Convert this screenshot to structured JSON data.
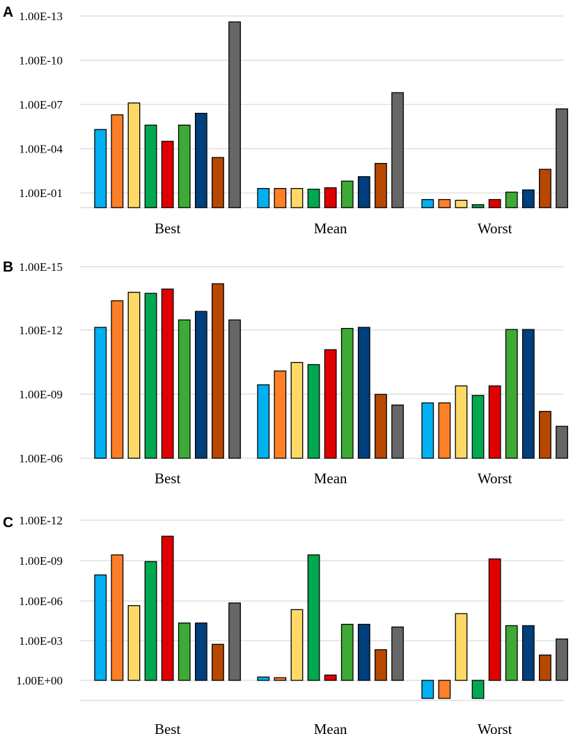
{
  "series_colors": [
    "#00b0f0",
    "#ff7f27",
    "#ffd966",
    "#00a84f",
    "#e00000",
    "#3daa35",
    "#003f7d",
    "#b84800",
    "#666666"
  ],
  "chart_data": [
    {
      "type": "bar",
      "panel": "A",
      "scale": "log",
      "categories": [
        "Best",
        "Mean",
        "Worst"
      ],
      "yticks": [
        "1.00E-01",
        "1.00E-04",
        "1.00E-07",
        "1.00E-10",
        "1.00E-13"
      ],
      "tick_exponents": [
        1,
        4,
        7,
        10,
        13
      ],
      "exp_range": [
        0,
        13.7
      ],
      "values": [
        [
          5.3,
          6.3,
          7.1,
          5.6,
          4.5,
          5.6,
          6.4,
          3.4,
          12.6
        ],
        [
          1.3,
          1.3,
          1.3,
          1.25,
          1.35,
          1.8,
          2.1,
          3.0,
          7.8
        ],
        [
          0.55,
          0.55,
          0.5,
          0.2,
          0.55,
          1.05,
          1.2,
          2.6,
          6.7
        ]
      ]
    },
    {
      "type": "bar",
      "panel": "B",
      "scale": "log",
      "categories": [
        "Best",
        "Mean",
        "Worst"
      ],
      "yticks": [
        "1.00E-06",
        "1.00E-09",
        "1.00E-12",
        "1.00E-15"
      ],
      "tick_exponents": [
        6,
        9,
        12,
        15
      ],
      "exp_range": [
        6,
        15
      ],
      "values": [
        [
          12.15,
          13.4,
          13.8,
          13.75,
          13.95,
          12.5,
          12.9,
          14.2,
          12.5
        ],
        [
          9.45,
          10.1,
          10.5,
          10.4,
          11.1,
          12.1,
          12.15,
          9.0,
          8.5
        ],
        [
          8.6,
          8.6,
          9.4,
          8.95,
          9.4,
          12.05,
          12.05,
          8.2,
          7.5
        ]
      ]
    },
    {
      "type": "bar",
      "panel": "C",
      "scale": "log",
      "categories": [
        "Best",
        "Mean",
        "Worst"
      ],
      "yticks": [
        "1.00E+00",
        "1.00E-03",
        "1.00E-06",
        "1.00E-09",
        "1.00E-12"
      ],
      "tick_exponents": [
        0,
        3,
        6,
        9,
        12
      ],
      "exp_range": [
        -1.5,
        12
      ],
      "values": [
        [
          7.9,
          9.4,
          5.6,
          8.9,
          10.8,
          4.3,
          4.3,
          2.7,
          5.8
        ],
        [
          0.25,
          0.2,
          5.3,
          9.4,
          0.4,
          4.2,
          4.2,
          2.3,
          4.0
        ],
        [
          -1.35,
          -1.35,
          5.0,
          -1.35,
          9.1,
          4.1,
          4.1,
          1.9,
          3.1
        ]
      ]
    }
  ]
}
